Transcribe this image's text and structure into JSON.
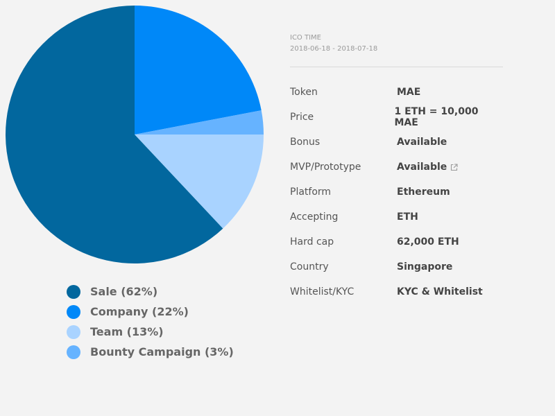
{
  "chart_data": {
    "type": "pie",
    "slices": [
      {
        "label": "Sale (62%)",
        "value": 62,
        "color": "#02679e"
      },
      {
        "label": "Company (22%)",
        "value": 22,
        "color": "#0088f8"
      },
      {
        "label": "Team (13%)",
        "value": 13,
        "color": "#a9d3ff"
      },
      {
        "label": "Bounty Campaign (3%)",
        "value": 3,
        "color": "#66b3ff"
      }
    ],
    "draw_order": [
      1,
      3,
      2,
      0
    ],
    "start_angle_deg": 0,
    "direction": "clockwise",
    "legend_position": "bottom"
  },
  "ico": {
    "label": "ICO TIME",
    "dates": "2018-06-18 - 2018-07-18"
  },
  "details": [
    {
      "key": "Token",
      "value": "MAE"
    },
    {
      "key": "Price",
      "value": "1 ETH = 10,000 MAE"
    },
    {
      "key": "Bonus",
      "value": "Available"
    },
    {
      "key": "MVP/Prototype",
      "value": "Available",
      "icon": "external-link-icon"
    },
    {
      "key": "Platform",
      "value": "Ethereum"
    },
    {
      "key": "Accepting",
      "value": "ETH"
    },
    {
      "key": "Hard cap",
      "value": "62,000 ETH"
    },
    {
      "key": "Country",
      "value": "Singapore"
    },
    {
      "key": "Whitelist/KYC",
      "value": "KYC & Whitelist"
    }
  ]
}
